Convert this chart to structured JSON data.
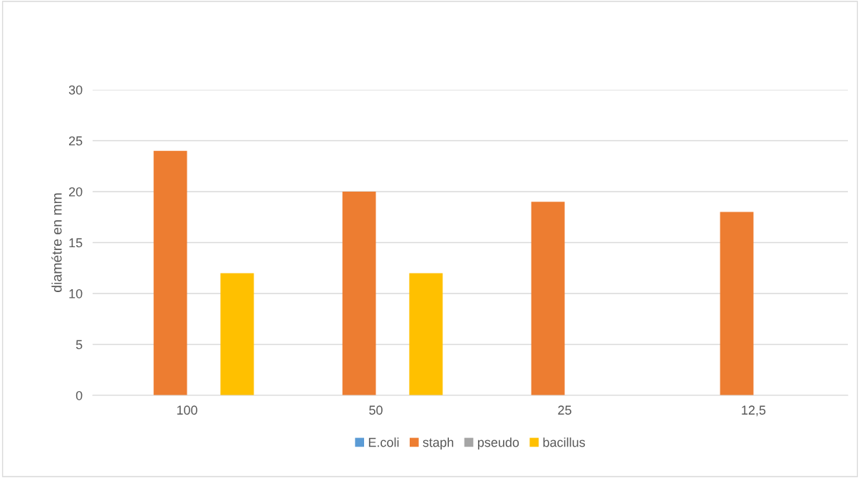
{
  "chart_data": {
    "type": "bar",
    "ylabel": "diamétre en mm",
    "categories": [
      "100",
      "50",
      "25",
      "12,5"
    ],
    "series": [
      {
        "name": "E.coli",
        "color": "#5b9bd5",
        "values": [
          0,
          0,
          0,
          0
        ]
      },
      {
        "name": "staph",
        "color": "#ed7d31",
        "values": [
          24,
          20,
          19,
          18
        ]
      },
      {
        "name": "pseudo",
        "color": "#a5a5a5",
        "values": [
          0,
          0,
          0,
          0
        ]
      },
      {
        "name": "bacillus",
        "color": "#ffc000",
        "values": [
          12,
          12,
          0,
          0
        ]
      }
    ],
    "ylim": [
      0,
      30
    ],
    "yticks": [
      0,
      5,
      10,
      15,
      20,
      25,
      30
    ],
    "grid": "y",
    "legend": "bottom"
  }
}
